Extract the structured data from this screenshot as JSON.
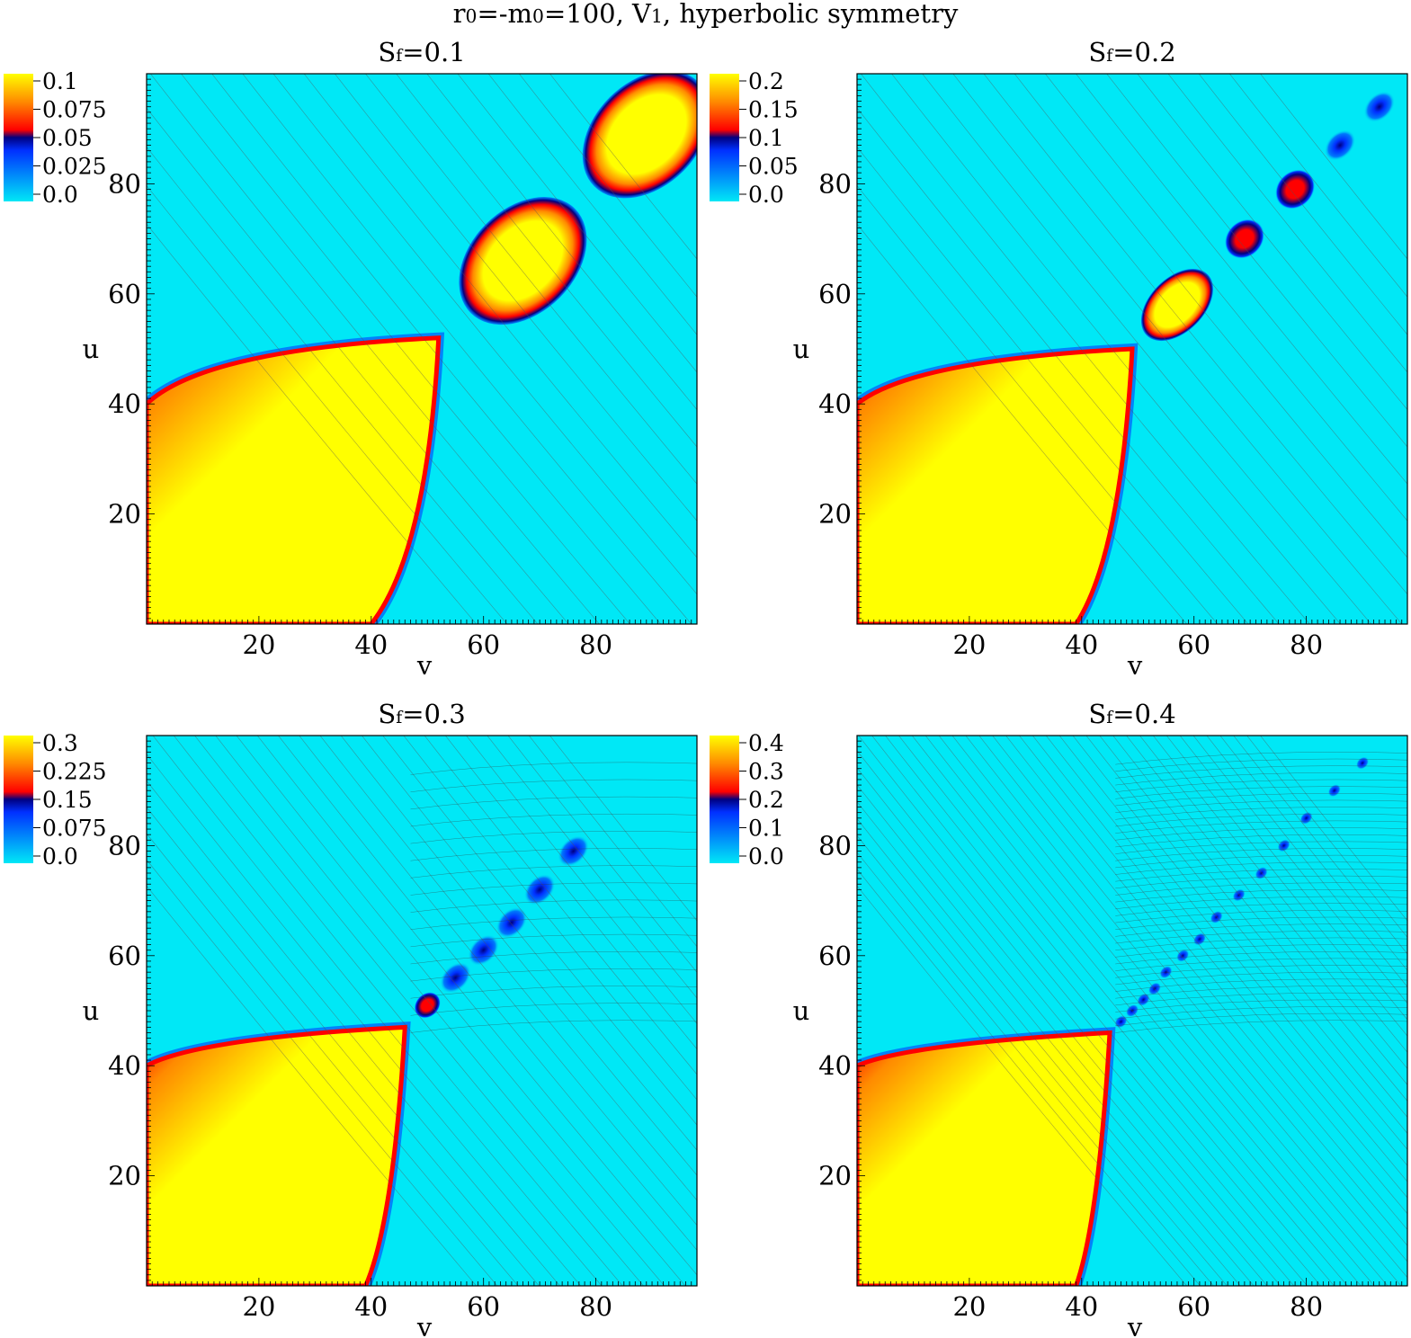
{
  "figure": {
    "suptitle_parts": [
      "r",
      "0",
      "=-m",
      "0",
      "=100, V",
      "1",
      ", hyperbolic symmetry"
    ]
  },
  "colormap": [
    "#00e8f6",
    "#0030ff",
    "#000080",
    "#ff0000",
    "#ff8a00",
    "#ffff00"
  ],
  "chart_data": [
    {
      "type": "heatmap",
      "title_parts": [
        "S",
        "f",
        "=0.1"
      ],
      "xlabel": "v",
      "ylabel": "u",
      "xlim": [
        0,
        98
      ],
      "ylim": [
        0,
        100
      ],
      "xticks": [
        20,
        40,
        60,
        80
      ],
      "yticks": [
        20,
        40,
        60,
        80
      ],
      "colorbar_ticks": [
        "0.1",
        "0.075",
        "0.05",
        "0.025",
        "0.0"
      ],
      "color_range": [
        0,
        0.1
      ],
      "features": {
        "main_region_corners": {
          "u_at_v0": 40,
          "v_at_u0": 40,
          "tip": [
            52,
            52
          ]
        },
        "blobs": [
          {
            "v": 67,
            "u": 66,
            "level": "high"
          },
          {
            "v": 89,
            "u": 89,
            "level": "high"
          }
        ]
      }
    },
    {
      "type": "heatmap",
      "title_parts": [
        "S",
        "f",
        "=0.2"
      ],
      "xlabel": "v",
      "ylabel": "u",
      "xlim": [
        0,
        98
      ],
      "ylim": [
        0,
        100
      ],
      "xticks": [
        20,
        40,
        60,
        80
      ],
      "yticks": [
        20,
        40,
        60,
        80
      ],
      "colorbar_ticks": [
        "0.2",
        "0.15",
        "0.1",
        "0.05",
        "0.0"
      ],
      "color_range": [
        0,
        0.2
      ],
      "features": {
        "main_region_corners": {
          "u_at_v0": 40,
          "v_at_u0": 39,
          "tip": [
            49,
            50
          ]
        },
        "blobs": [
          {
            "v": 57,
            "u": 58,
            "level": "high"
          },
          {
            "v": 69,
            "u": 70,
            "level": "mid"
          },
          {
            "v": 78,
            "u": 79,
            "level": "mid"
          },
          {
            "v": 86,
            "u": 87,
            "level": "low"
          },
          {
            "v": 93,
            "u": 94,
            "level": "low"
          }
        ]
      }
    },
    {
      "type": "heatmap",
      "title_parts": [
        "S",
        "f",
        "=0.3"
      ],
      "xlabel": "v",
      "ylabel": "u",
      "xlim": [
        0,
        98
      ],
      "ylim": [
        0,
        100
      ],
      "xticks": [
        20,
        40,
        60,
        80
      ],
      "yticks": [
        20,
        40,
        60,
        80
      ],
      "colorbar_ticks": [
        "0.3",
        "0.225",
        "0.15",
        "0.075",
        "0.0"
      ],
      "color_range": [
        0,
        0.3
      ],
      "features": {
        "main_region_corners": {
          "u_at_v0": 40,
          "v_at_u0": 39,
          "tip": [
            46,
            47
          ]
        },
        "blobs": [
          {
            "v": 50,
            "u": 51,
            "level": "mid"
          },
          {
            "v": 55,
            "u": 56,
            "level": "low"
          },
          {
            "v": 60,
            "u": 61,
            "level": "low"
          },
          {
            "v": 65,
            "u": 66,
            "level": "low"
          },
          {
            "v": 70,
            "u": 72,
            "level": "low"
          },
          {
            "v": 76,
            "u": 79,
            "level": "low"
          }
        ]
      }
    },
    {
      "type": "heatmap",
      "title_parts": [
        "S",
        "f",
        "=0.4"
      ],
      "xlabel": "v",
      "ylabel": "u",
      "xlim": [
        0,
        98
      ],
      "ylim": [
        0,
        100
      ],
      "xticks": [
        20,
        40,
        60,
        80
      ],
      "yticks": [
        20,
        40,
        60,
        80
      ],
      "colorbar_ticks": [
        "0.4",
        "0.3",
        "0.2",
        "0.1",
        "0.0"
      ],
      "color_range": [
        0,
        0.4
      ],
      "features": {
        "main_region_corners": {
          "u_at_v0": 40,
          "v_at_u0": 39,
          "tip": [
            45,
            46
          ]
        },
        "blobs": [
          {
            "v": 47,
            "u": 48,
            "level": "low"
          },
          {
            "v": 49,
            "u": 50,
            "level": "low"
          },
          {
            "v": 51,
            "u": 52,
            "level": "low"
          },
          {
            "v": 53,
            "u": 54,
            "level": "low"
          },
          {
            "v": 55,
            "u": 57,
            "level": "low"
          },
          {
            "v": 58,
            "u": 60,
            "level": "low"
          },
          {
            "v": 61,
            "u": 63,
            "level": "low"
          },
          {
            "v": 64,
            "u": 67,
            "level": "low"
          },
          {
            "v": 68,
            "u": 71,
            "level": "low"
          },
          {
            "v": 72,
            "u": 75,
            "level": "low"
          },
          {
            "v": 76,
            "u": 80,
            "level": "low"
          },
          {
            "v": 80,
            "u": 85,
            "level": "low"
          },
          {
            "v": 85,
            "u": 90,
            "level": "low"
          },
          {
            "v": 90,
            "u": 95,
            "level": "low"
          }
        ]
      }
    }
  ]
}
